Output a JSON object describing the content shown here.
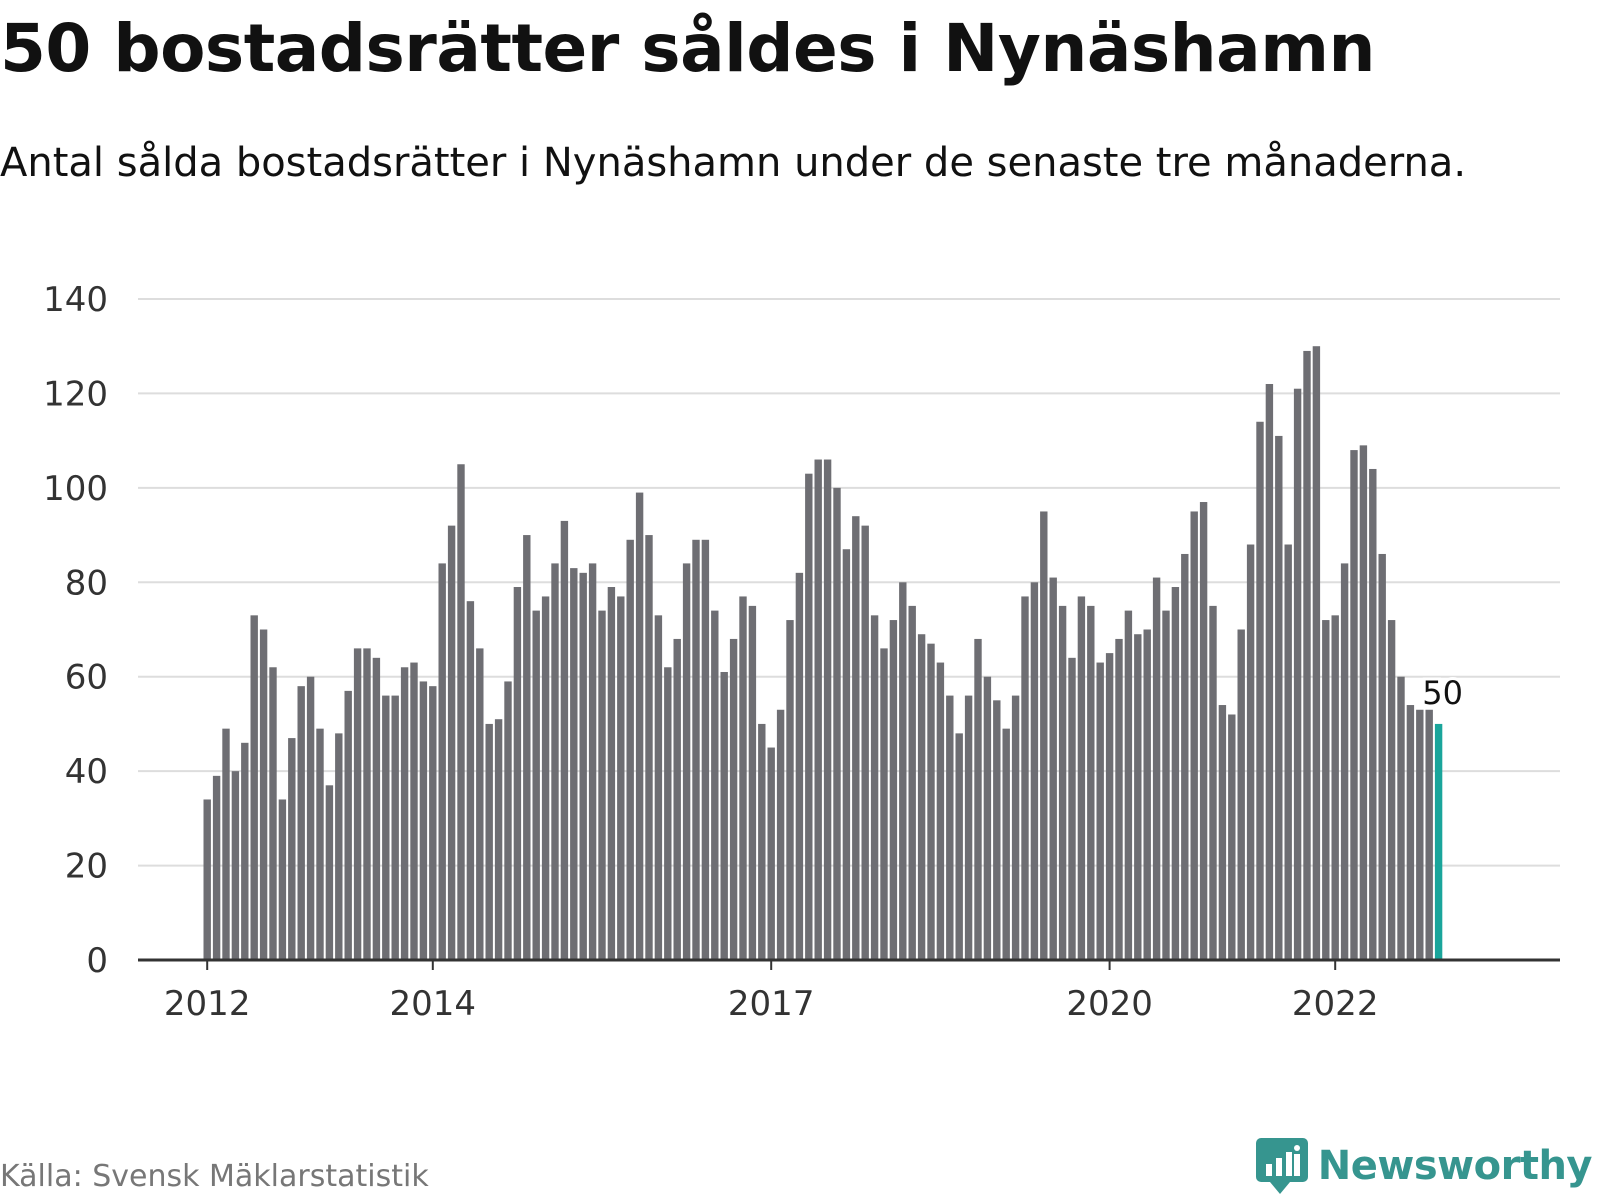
{
  "header": {
    "title": "50 bostadsrätter såldes i Nynäshamn",
    "subtitle": "Antal sålda bostadsrätter i Nynäshamn under de senaste tre månaderna."
  },
  "footer": {
    "source": "Källa: Svensk Mäklarstatistik",
    "brand": "Newsworthy",
    "brand_icon": "bar-chart-speech-bubble-icon"
  },
  "colors": {
    "bar": "#6e6e73",
    "highlight": "#1aa59b",
    "grid": "#dddddd",
    "axis": "#333333",
    "brand": "#36958f"
  },
  "chart_data": {
    "type": "bar",
    "title": "",
    "xlabel": "",
    "ylabel": "",
    "ylim": [
      0,
      140
    ],
    "yticks": [
      0,
      20,
      40,
      60,
      80,
      100,
      120,
      140
    ],
    "xtick_labels": [
      "2012",
      "2014",
      "2017",
      "2020",
      "2022"
    ],
    "grid": true,
    "highlight_label": "50",
    "series": [
      {
        "values": [
          34,
          39,
          49,
          40,
          46,
          73,
          70,
          62,
          34,
          47,
          58,
          60,
          49,
          37,
          48,
          57,
          66,
          66,
          64,
          56,
          56,
          62,
          63,
          59,
          58,
          84,
          92,
          105,
          76,
          66,
          50,
          51,
          59,
          79,
          90,
          74,
          77,
          84,
          93,
          83,
          82,
          84,
          74,
          79,
          77,
          89,
          99,
          90,
          73,
          62,
          68,
          84,
          89,
          89,
          74,
          61,
          68,
          77,
          75,
          50,
          45,
          53,
          72,
          82,
          103,
          106,
          106,
          100,
          87,
          94,
          92,
          73,
          66,
          72,
          80,
          75,
          69,
          67,
          63,
          56,
          48,
          56,
          68,
          60,
          55,
          49,
          56,
          77,
          80,
          95,
          81,
          75,
          64,
          77,
          75,
          63,
          65,
          68,
          74,
          69,
          70,
          81,
          74,
          79,
          86,
          95,
          97,
          75,
          54,
          52,
          70,
          88,
          114,
          122,
          111,
          88,
          121,
          129,
          130,
          72,
          73,
          84,
          108,
          109,
          104,
          86,
          72,
          60,
          54,
          53,
          53,
          50
        ]
      }
    ]
  }
}
